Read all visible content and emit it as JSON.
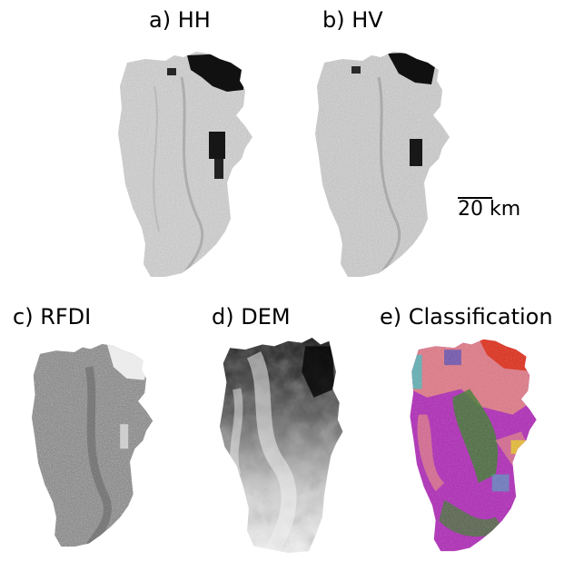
{
  "panels": [
    {
      "id": "hh",
      "title": "a) HH"
    },
    {
      "id": "hv",
      "title": "b) HV"
    },
    {
      "id": "rfdi",
      "title": "c) RFDI"
    },
    {
      "id": "dem",
      "title": "d) DEM"
    },
    {
      "id": "classification",
      "title": "e) Classification"
    }
  ],
  "scale_bar": {
    "label": "20 km"
  },
  "colors": {
    "hh_base": "#c8c8c8",
    "hv_base": "#c4c4c4",
    "rfdi_base": "#7a7a7a",
    "dem_dark": "#0c0c0c",
    "dem_light": "#f4f4f4",
    "class_magenta": "#b02cb8",
    "class_pink": "#e07a88",
    "class_green": "#3d7a2e",
    "class_red": "#e0301c",
    "class_cyan": "#2ec8c8",
    "class_yellow": "#e8d020",
    "class_blue": "#2a40c8"
  }
}
